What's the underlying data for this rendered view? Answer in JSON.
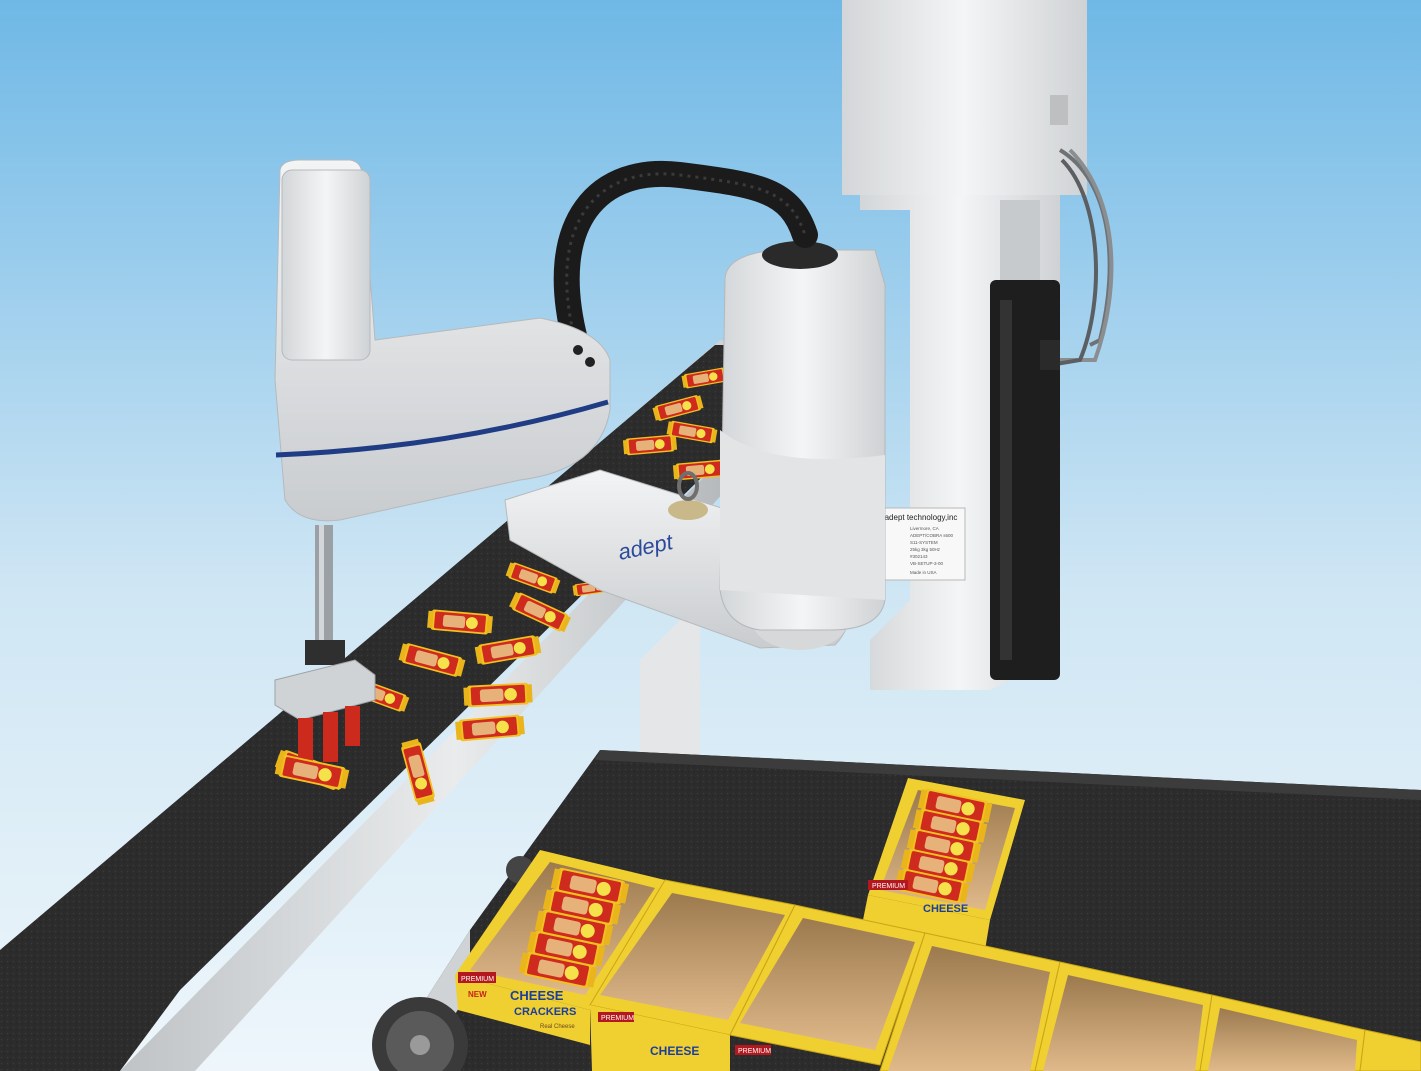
{
  "robot": {
    "brand": "adept",
    "nameplate": {
      "company": "adept technology,inc",
      "lines": [
        "Livermore, CA",
        "ADEPT/COBRA s600",
        "S11-SYSTEM",
        "25kg  3kg  50Hz",
        "#302143",
        "VB-SETUP-3-00",
        "Made in USA"
      ]
    }
  },
  "product": {
    "premium_label": "PREMIUM",
    "new_label": "NEW",
    "name_line1": "CHEESE",
    "name_line2": "CRACKERS",
    "tagline": "Real Cheese"
  },
  "colors": {
    "sky_top": "#6fb8e6",
    "sky_bottom": "#eef6fb",
    "belt": "#2b2b2b",
    "robot_white": "#eceeef",
    "robot_stripe": "#1f3c85",
    "box_yellow": "#e6c220",
    "pack_red": "#cf2a1e",
    "pack_yellow": "#f2c020",
    "cardboard": "#caa070"
  }
}
